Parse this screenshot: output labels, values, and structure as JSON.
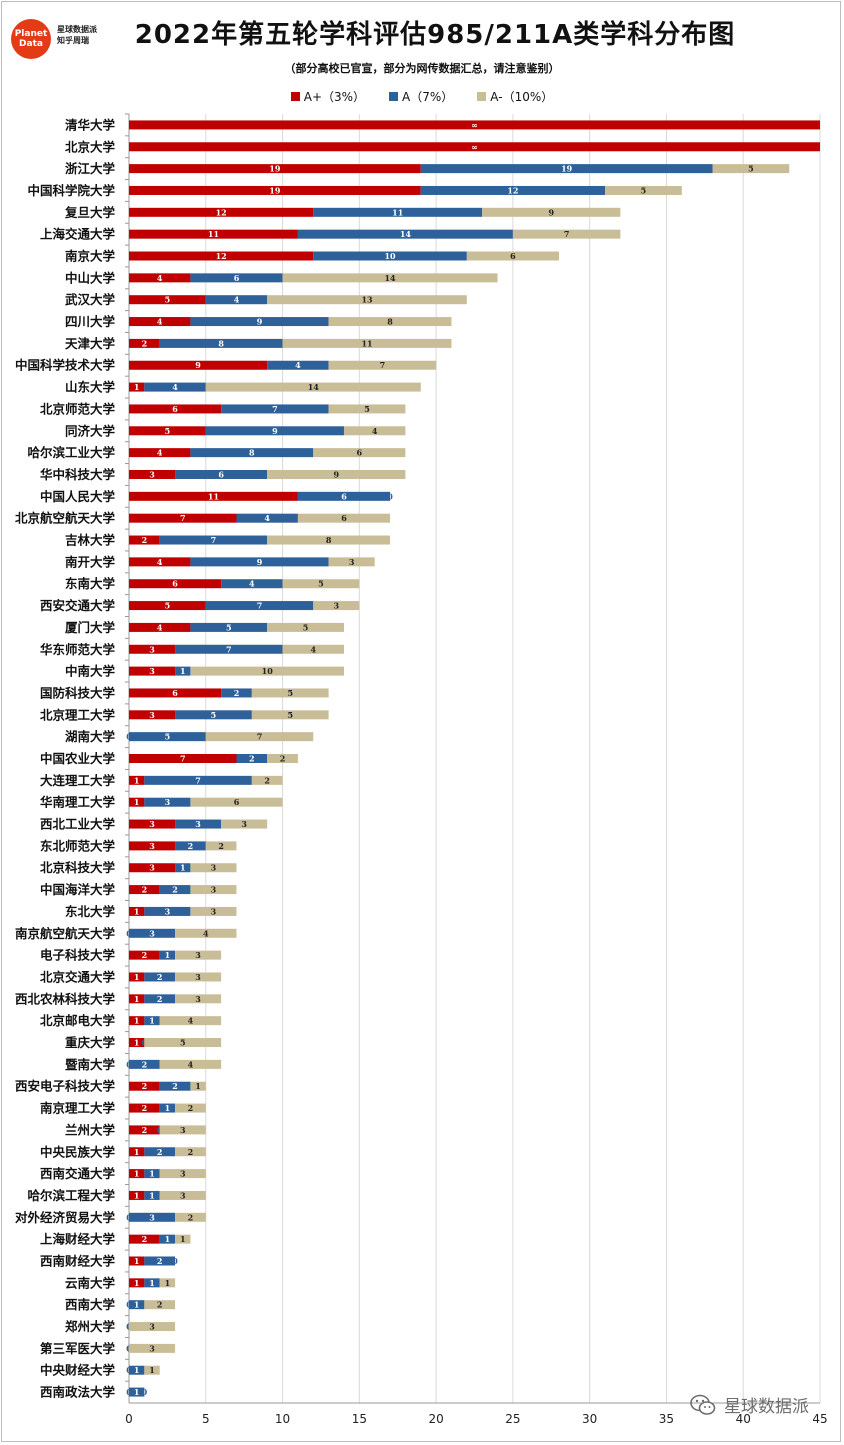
{
  "header": {
    "logo_line1": "Planet",
    "logo_line2": "Data",
    "logo_sub1": "星球数据派",
    "logo_sub2": "知乎周瑞",
    "title": "2022年第五轮学科评估985/211A类学科分布图",
    "subtitle": "（部分高校已官宣，部分为网传数据汇总，请注意鉴别）"
  },
  "watermark_text": "星球数据派",
  "colors": {
    "a_plus": "#c00000",
    "a": "#2e6099",
    "a_minus": "#c9bd98"
  },
  "chart_data": {
    "type": "bar",
    "orientation": "horizontal",
    "stacked": true,
    "title": "2022年第五轮学科评估985/211A类学科分布图",
    "xlim": [
      0,
      45
    ],
    "xticks": [
      0,
      5,
      10,
      15,
      20,
      25,
      30,
      35,
      40,
      45
    ],
    "grid": true,
    "legend_position": "top",
    "series": [
      {
        "name": "A+（3%）",
        "key": "a_plus"
      },
      {
        "name": "A（7%）",
        "key": "a"
      },
      {
        "name": "A-（10%）",
        "key": "a_minus"
      }
    ],
    "categories": [
      "清华大学",
      "北京大学",
      "浙江大学",
      "中国科学院大学",
      "复旦大学",
      "上海交通大学",
      "南京大学",
      "中山大学",
      "武汉大学",
      "四川大学",
      "天津大学",
      "中国科学技术大学",
      "山东大学",
      "北京师范大学",
      "同济大学",
      "哈尔滨工业大学",
      "华中科技大学",
      "中国人民大学",
      "北京航空航天大学",
      "吉林大学",
      "南开大学",
      "东南大学",
      "西安交通大学",
      "厦门大学",
      "华东师范大学",
      "中南大学",
      "国防科技大学",
      "北京理工大学",
      "湖南大学",
      "中国农业大学",
      "大连理工大学",
      "华南理工大学",
      "西北工业大学",
      "东北师范大学",
      "北京科技大学",
      "中国海洋大学",
      "东北大学",
      "南京航空航天大学",
      "电子科技大学",
      "北京交通大学",
      "西北农林科技大学",
      "北京邮电大学",
      "重庆大学",
      "暨南大学",
      "西安电子科技大学",
      "南京理工大学",
      "兰州大学",
      "中央民族大学",
      "西南交通大学",
      "哈尔滨工程大学",
      "对外经济贸易大学",
      "上海财经大学",
      "西南财经大学",
      "云南大学",
      "西南大学",
      "郑州大学",
      "第三军医大学",
      "中央财经大学",
      "西南政法大学"
    ],
    "values": [
      [
        45,
        0,
        0
      ],
      [
        45,
        0,
        0
      ],
      [
        19,
        19,
        5
      ],
      [
        19,
        12,
        5
      ],
      [
        12,
        11,
        9
      ],
      [
        11,
        14,
        7
      ],
      [
        12,
        10,
        6
      ],
      [
        4,
        6,
        14
      ],
      [
        5,
        4,
        13
      ],
      [
        4,
        9,
        8
      ],
      [
        2,
        8,
        11
      ],
      [
        9,
        4,
        7
      ],
      [
        1,
        4,
        14
      ],
      [
        6,
        7,
        5
      ],
      [
        5,
        9,
        4
      ],
      [
        4,
        8,
        6
      ],
      [
        3,
        6,
        9
      ],
      [
        11,
        6,
        0
      ],
      [
        7,
        4,
        6
      ],
      [
        2,
        7,
        8
      ],
      [
        4,
        9,
        3
      ],
      [
        6,
        4,
        5
      ],
      [
        5,
        7,
        3
      ],
      [
        4,
        5,
        5
      ],
      [
        3,
        7,
        4
      ],
      [
        3,
        1,
        10
      ],
      [
        6,
        2,
        5
      ],
      [
        3,
        5,
        5
      ],
      [
        0,
        5,
        7
      ],
      [
        7,
        2,
        2
      ],
      [
        1,
        7,
        2
      ],
      [
        1,
        3,
        6
      ],
      [
        3,
        3,
        3
      ],
      [
        3,
        2,
        2
      ],
      [
        3,
        1,
        3
      ],
      [
        2,
        2,
        3
      ],
      [
        1,
        3,
        3
      ],
      [
        0,
        3,
        4
      ],
      [
        2,
        1,
        3
      ],
      [
        1,
        2,
        3
      ],
      [
        1,
        2,
        3
      ],
      [
        1,
        1,
        4
      ],
      [
        1,
        0,
        5
      ],
      [
        0,
        2,
        4
      ],
      [
        2,
        2,
        1
      ],
      [
        2,
        1,
        2
      ],
      [
        2,
        0,
        3
      ],
      [
        1,
        2,
        2
      ],
      [
        1,
        1,
        3
      ],
      [
        1,
        1,
        3
      ],
      [
        0,
        3,
        2
      ],
      [
        2,
        1,
        1
      ],
      [
        1,
        2,
        0
      ],
      [
        1,
        1,
        1
      ],
      [
        0,
        1,
        2
      ],
      [
        0,
        0,
        3
      ],
      [
        0,
        0,
        3
      ],
      [
        0,
        1,
        1
      ],
      [
        0,
        1,
        0
      ]
    ],
    "labels": [
      [
        "∞",
        "",
        ""
      ],
      [
        "∞",
        "",
        ""
      ],
      [
        "19",
        "19",
        "5"
      ],
      [
        "19",
        "12",
        "5"
      ],
      [
        "12",
        "11",
        "9"
      ],
      [
        "11",
        "14",
        "7"
      ],
      [
        "12",
        "10",
        "6"
      ],
      [
        "4",
        "6",
        "14"
      ],
      [
        "5",
        "4",
        "13"
      ],
      [
        "4",
        "9",
        "8"
      ],
      [
        "2",
        "8",
        "11"
      ],
      [
        "9",
        "4",
        "7"
      ],
      [
        "1",
        "4",
        "14"
      ],
      [
        "6",
        "7",
        "5"
      ],
      [
        "5",
        "9",
        "4"
      ],
      [
        "4",
        "8",
        "6"
      ],
      [
        "3",
        "6",
        "9"
      ],
      [
        "11",
        "6",
        "0"
      ],
      [
        "7",
        "4",
        "6"
      ],
      [
        "2",
        "7",
        "8"
      ],
      [
        "4",
        "9",
        "3"
      ],
      [
        "6",
        "4",
        "5"
      ],
      [
        "5",
        "7",
        "3"
      ],
      [
        "4",
        "5",
        "5"
      ],
      [
        "3",
        "7",
        "4"
      ],
      [
        "3",
        "1",
        "10"
      ],
      [
        "6",
        "2",
        "5"
      ],
      [
        "3",
        "5",
        "5"
      ],
      [
        "0",
        "5",
        "7"
      ],
      [
        "7",
        "2",
        "2"
      ],
      [
        "1",
        "7",
        "2"
      ],
      [
        "1",
        "3",
        "6"
      ],
      [
        "3",
        "3",
        "3"
      ],
      [
        "3",
        "2",
        "2"
      ],
      [
        "3",
        "1",
        "3"
      ],
      [
        "2",
        "2",
        "3"
      ],
      [
        "1",
        "3",
        "3"
      ],
      [
        "0",
        "3",
        "4"
      ],
      [
        "2",
        "1",
        "3"
      ],
      [
        "1",
        "2",
        "3"
      ],
      [
        "1",
        "2",
        "3"
      ],
      [
        "1",
        "1",
        "4"
      ],
      [
        "1",
        "0",
        "5"
      ],
      [
        "0",
        "2",
        "4"
      ],
      [
        "2",
        "2",
        "1"
      ],
      [
        "2",
        "1",
        "2"
      ],
      [
        "2",
        "0",
        "3"
      ],
      [
        "1",
        "2",
        "2"
      ],
      [
        "1",
        "1",
        "3"
      ],
      [
        "1",
        "1",
        "3"
      ],
      [
        "0",
        "3",
        "2"
      ],
      [
        "2",
        "1",
        "1"
      ],
      [
        "1",
        "2",
        "0"
      ],
      [
        "1",
        "1",
        "1"
      ],
      [
        "0",
        "1",
        "2"
      ],
      [
        "0",
        "0",
        "3"
      ],
      [
        "0",
        "0",
        "3"
      ],
      [
        "0",
        "1",
        "1"
      ],
      [
        "0",
        "1",
        "0"
      ]
    ]
  }
}
